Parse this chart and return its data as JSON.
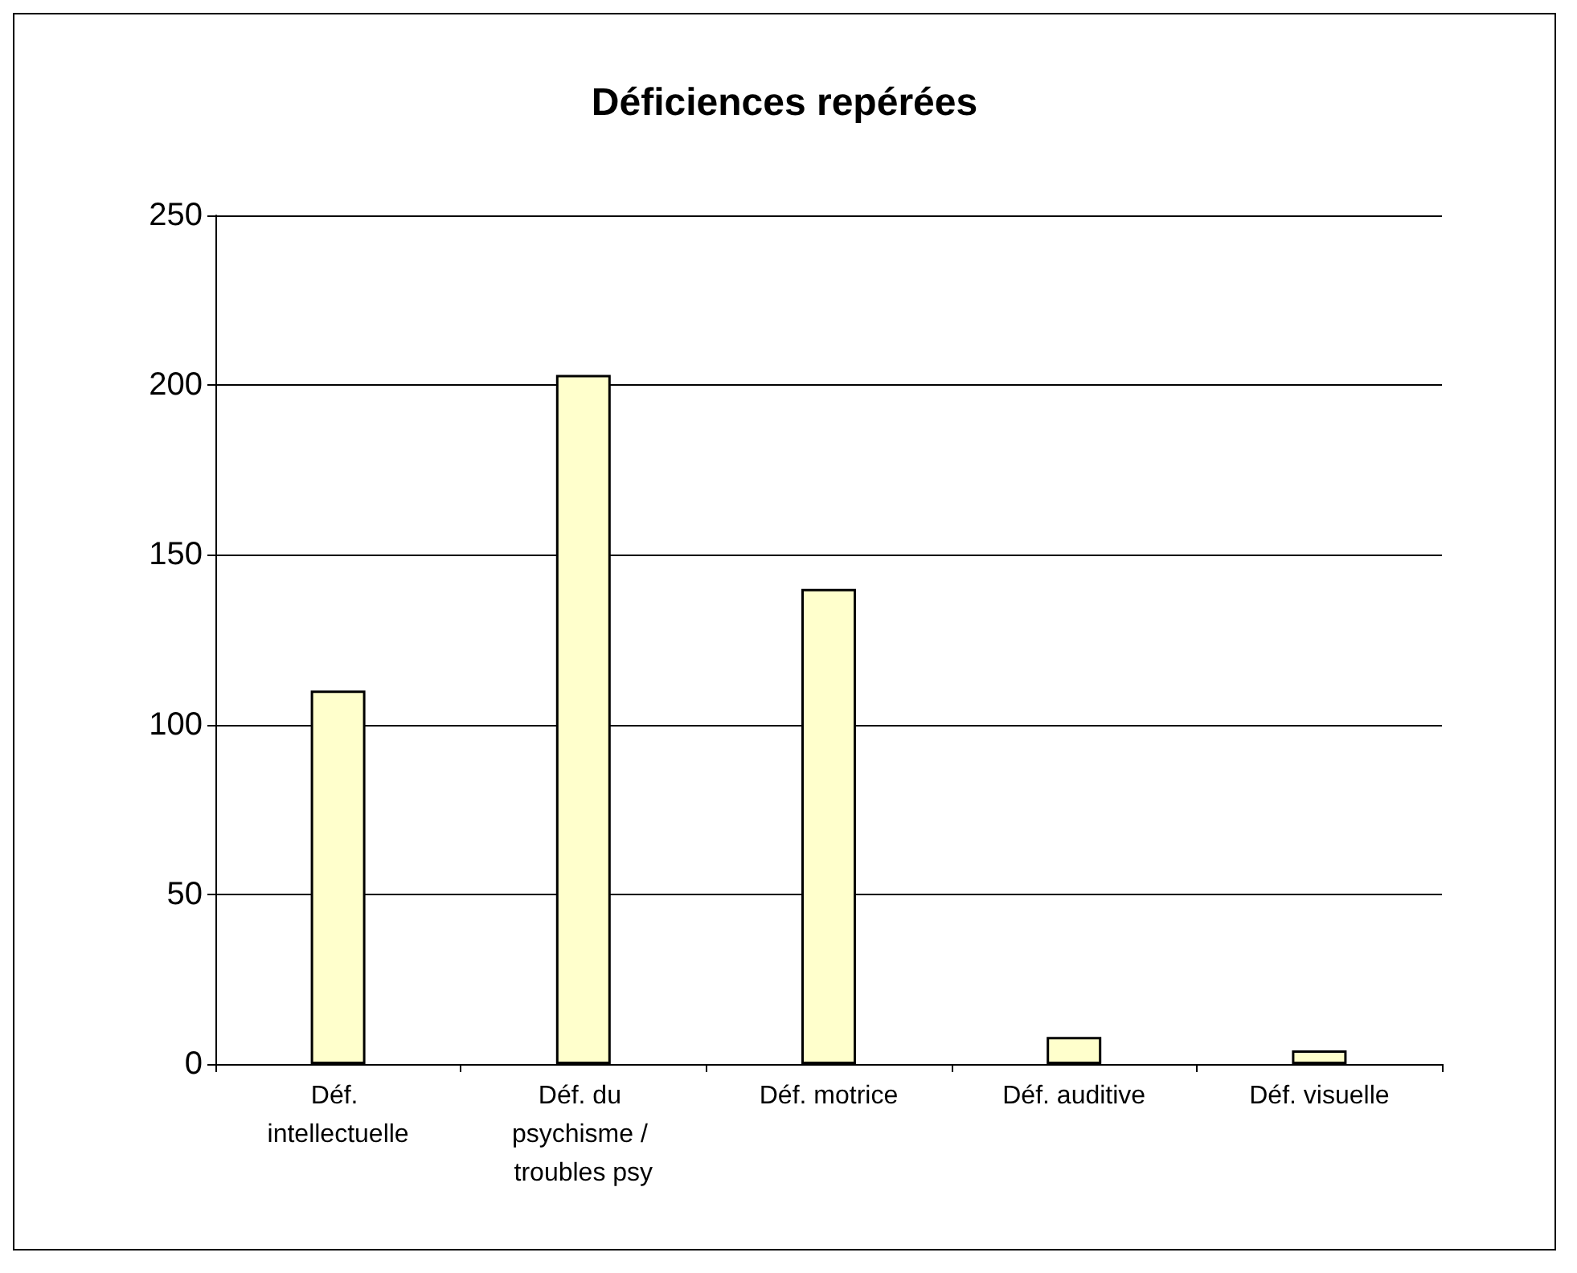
{
  "chart_data": {
    "type": "bar",
    "title": "Déficiences repérées",
    "categories": [
      "Déf. intellectuelle",
      "Déf. du psychisme / troubles psy",
      "Déf. motrice",
      "Déf. auditive",
      "Déf. visuelle"
    ],
    "values": [
      110,
      203,
      140,
      8,
      4
    ],
    "color": "#ffffcc",
    "ylim": [
      0,
      250
    ],
    "yticks": [
      0,
      50,
      100,
      150,
      200,
      250
    ],
    "grid": "y"
  }
}
